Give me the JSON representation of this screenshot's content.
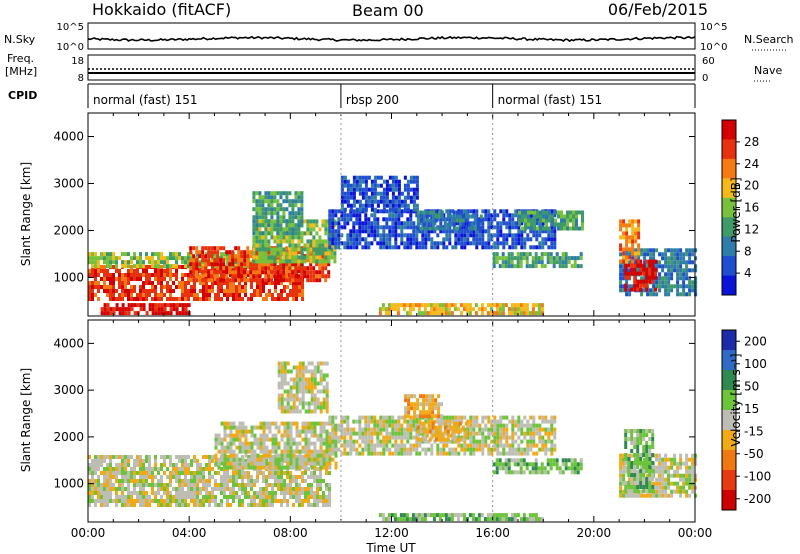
{
  "header": {
    "station": "Hokkaido (fitACF)",
    "beam": "Beam 00",
    "date": "06/Feb/2015"
  },
  "strip_labels": {
    "nsky": "N.Sky",
    "nsky_hi": "10^5",
    "nsky_lo": "10^0",
    "nsearch": "N.Search",
    "nsearch_hi": "10^5",
    "nsearch_lo": "10^0",
    "freq_top": "Freq.",
    "freq_unit": "[MHz]",
    "freq_hi": "18",
    "freq_lo": "8",
    "nave": "Nave",
    "nave_hi": "60",
    "nave_lo": "0",
    "cpid": "CPID"
  },
  "cpid_segments": [
    {
      "label": "normal (fast) 151",
      "start_hour": 0
    },
    {
      "label": "rbsp 200",
      "start_hour": 10
    },
    {
      "label": "normal (fast) 151",
      "start_hour": 16
    }
  ],
  "colors": {
    "power": [
      "#0a14d8",
      "#1f4fd0",
      "#2e7da8",
      "#3f9a6a",
      "#77c23a",
      "#f5b91a",
      "#f57a12",
      "#e8320e",
      "#d40000"
    ],
    "velocity": [
      "#1c2ca8",
      "#2f6bc4",
      "#2e8a50",
      "#6cc43a",
      "#bdbdb4",
      "#f0aa18",
      "#f07812",
      "#e83a10",
      "#cc0000"
    ]
  },
  "chart_data": [
    {
      "type": "heatmap",
      "name": "power",
      "ylabel": "Slant Range [km]",
      "xlabel": "Time UT",
      "x_ticks": [
        "00:00",
        "04:00",
        "08:00",
        "12:00",
        "16:00",
        "20:00",
        "00:00"
      ],
      "xlim_hours": [
        0,
        24
      ],
      "y_ticks": [
        1000,
        2000,
        3000,
        4000
      ],
      "ylim_km": [
        180,
        4500
      ],
      "colorbar_label": "Power [dB]",
      "colorbar_ticks": [
        "4",
        "8",
        "12",
        "16",
        "20",
        "24",
        "28"
      ],
      "regions": [
        {
          "t0": 0.0,
          "t1": 8.5,
          "r0": 500,
          "r1": 1200,
          "level": 7
        },
        {
          "t0": 0.0,
          "t1": 8.5,
          "r0": 1200,
          "r1": 1500,
          "level": 4
        },
        {
          "t0": 4.0,
          "t1": 9.5,
          "r0": 900,
          "r1": 1600,
          "level": 7
        },
        {
          "t0": 6.5,
          "t1": 9.8,
          "r0": 1300,
          "r1": 2200,
          "level": 4
        },
        {
          "t0": 6.5,
          "t1": 8.5,
          "r0": 1900,
          "r1": 2800,
          "level": 3
        },
        {
          "t0": 9.5,
          "t1": 18.5,
          "r0": 1600,
          "r1": 2400,
          "level": 1
        },
        {
          "t0": 10.0,
          "t1": 13.0,
          "r0": 2400,
          "r1": 3100,
          "level": 1
        },
        {
          "t0": 13.0,
          "t1": 15.5,
          "r0": 2000,
          "r1": 2400,
          "level": 2
        },
        {
          "t0": 17.0,
          "t1": 19.5,
          "r0": 2000,
          "r1": 2400,
          "level": 3
        },
        {
          "t0": 16.0,
          "t1": 19.5,
          "r0": 1200,
          "r1": 1500,
          "level": 3
        },
        {
          "t0": 21.0,
          "t1": 24.0,
          "r0": 600,
          "r1": 1600,
          "level": 2
        },
        {
          "t0": 21.2,
          "t1": 22.5,
          "r0": 700,
          "r1": 1300,
          "level": 8
        },
        {
          "t0": 21.0,
          "t1": 21.8,
          "r0": 1300,
          "r1": 2200,
          "level": 6
        },
        {
          "t0": 11.5,
          "t1": 18.0,
          "r0": 200,
          "r1": 400,
          "level": 5
        },
        {
          "t0": 0.5,
          "t1": 4.0,
          "r0": 200,
          "r1": 400,
          "level": 8
        }
      ]
    },
    {
      "type": "heatmap",
      "name": "velocity",
      "ylabel": "Slant Range [km]",
      "xlabel": "Time UT",
      "x_ticks": [
        "00:00",
        "04:00",
        "08:00",
        "12:00",
        "16:00",
        "20:00",
        "00:00"
      ],
      "xlim_hours": [
        0,
        24
      ],
      "y_ticks": [
        1000,
        2000,
        3000,
        4000
      ],
      "ylim_km": [
        180,
        4500
      ],
      "colorbar_label": "Velocity [m s⁻¹]",
      "colorbar_ticks": [
        "200",
        "100",
        "50",
        "15",
        "-15",
        "-50",
        "-100",
        "-200"
      ],
      "regions": [
        {
          "t0": 0.0,
          "t1": 9.5,
          "r0": 500,
          "r1": 1600,
          "level": 4
        },
        {
          "t0": 5.0,
          "t1": 9.8,
          "r0": 1300,
          "r1": 2300,
          "level": 4
        },
        {
          "t0": 9.5,
          "t1": 18.5,
          "r0": 1600,
          "r1": 2400,
          "level": 4
        },
        {
          "t0": 13.0,
          "t1": 15.0,
          "r0": 1900,
          "r1": 2300,
          "level": 5
        },
        {
          "t0": 16.0,
          "t1": 19.5,
          "r0": 1200,
          "r1": 1500,
          "level": 3
        },
        {
          "t0": 21.0,
          "t1": 24.0,
          "r0": 700,
          "r1": 1600,
          "level": 4
        },
        {
          "t0": 21.2,
          "t1": 22.3,
          "r0": 800,
          "r1": 2100,
          "level": 3
        },
        {
          "t0": 11.5,
          "t1": 18.0,
          "r0": 200,
          "r1": 350,
          "level": 3
        },
        {
          "t0": 7.5,
          "t1": 9.5,
          "r0": 2500,
          "r1": 3600,
          "level": 4
        },
        {
          "t0": 12.5,
          "t1": 14.0,
          "r0": 2400,
          "r1": 2900,
          "level": 5
        }
      ]
    }
  ]
}
